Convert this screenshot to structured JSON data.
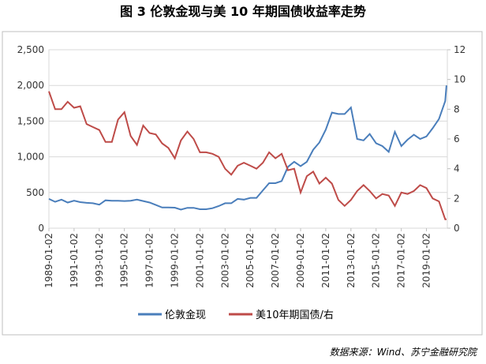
{
  "chart_data": {
    "type": "line",
    "title": "图 3  伦敦金现与美 10 年期国债收益率走势",
    "source": "数据来源：Wind、苏宁金融研究院",
    "x": [
      "1989-01-02",
      "1989-07-03",
      "1990-01-02",
      "1990-07-02",
      "1991-01-02",
      "1991-07-01",
      "1992-01-02",
      "1992-07-01",
      "1993-01-04",
      "1993-07-01",
      "1994-01-03",
      "1994-07-01",
      "1995-01-03",
      "1995-07-03",
      "1996-01-02",
      "1996-07-01",
      "1997-01-02",
      "1997-07-01",
      "1998-01-02",
      "1998-07-01",
      "1999-01-04",
      "1999-07-01",
      "2000-01-03",
      "2000-07-03",
      "2001-01-02",
      "2001-07-02",
      "2002-01-02",
      "2002-07-01",
      "2003-01-02",
      "2003-07-01",
      "2004-01-02",
      "2004-07-01",
      "2005-01-03",
      "2005-07-01",
      "2006-01-03",
      "2006-07-03",
      "2007-01-02",
      "2007-07-02",
      "2008-01-02",
      "2008-07-01",
      "2009-01-02",
      "2009-07-01",
      "2010-01-04",
      "2010-07-01",
      "2011-01-03",
      "2011-07-01",
      "2012-01-03",
      "2012-07-02",
      "2013-01-02",
      "2013-07-01",
      "2014-01-02",
      "2014-07-01",
      "2015-01-02",
      "2015-07-01",
      "2016-01-04",
      "2016-07-01",
      "2017-01-03",
      "2017-07-03",
      "2018-01-02",
      "2018-07-02",
      "2019-01-02",
      "2019-07-01",
      "2020-01-02",
      "2020-07-01",
      "2020-08-06"
    ],
    "xlim": [
      "1989-01-02",
      "2020-08-31"
    ],
    "xticks": [
      "1989-01-02",
      "1991-01-02",
      "1993-01-02",
      "1995-01-02",
      "1997-01-02",
      "1999-01-02",
      "2001-01-02",
      "2003-01-02",
      "2005-01-02",
      "2007-01-02",
      "2009-01-02",
      "2011-01-02",
      "2013-01-02",
      "2015-01-02",
      "2017-01-02",
      "2019-01-02"
    ],
    "ylim": [
      0,
      2500
    ],
    "yticks": [
      0,
      500,
      {
        "value": 1000,
        "label": "1,000"
      },
      {
        "value": 1500,
        "label": "1,500"
      },
      {
        "value": 2000,
        "label": "2,000"
      },
      {
        "value": 2500,
        "label": "2,500"
      }
    ],
    "y2lim": [
      0,
      12
    ],
    "y2ticks": [
      0,
      2,
      4,
      6,
      8,
      10,
      12
    ],
    "grid": true,
    "legend": "bottom",
    "series": [
      {
        "name": "伦敦金现",
        "color": "#4a7ebb",
        "values": [
          410,
          370,
          400,
          360,
          385,
          365,
          355,
          350,
          330,
          390,
          385,
          385,
          380,
          385,
          400,
          380,
          360,
          325,
          290,
          290,
          288,
          260,
          285,
          285,
          265,
          265,
          280,
          310,
          350,
          350,
          410,
          400,
          425,
          425,
          530,
          630,
          630,
          660,
          860,
          930,
          870,
          930,
          1100,
          1200,
          1380,
          1620,
          1600,
          1600,
          1690,
          1250,
          1230,
          1320,
          1190,
          1150,
          1070,
          1350,
          1150,
          1240,
          1310,
          1250,
          1285,
          1400,
          1530,
          1780,
          2000
        ]
      },
      {
        "name": "美10年期国债/右",
        "color": "#be4b48",
        "axis": "y2",
        "values": [
          9.2,
          8.0,
          8.0,
          8.5,
          8.1,
          8.2,
          7.0,
          6.8,
          6.6,
          5.8,
          5.8,
          7.3,
          7.8,
          6.2,
          5.6,
          6.9,
          6.4,
          6.3,
          5.7,
          5.4,
          4.7,
          5.9,
          6.5,
          6.0,
          5.1,
          5.1,
          5.0,
          4.8,
          4.0,
          3.6,
          4.2,
          4.4,
          4.2,
          4.0,
          4.4,
          5.1,
          4.7,
          5.0,
          3.9,
          4.0,
          2.4,
          3.5,
          3.8,
          3.0,
          3.4,
          3.0,
          1.9,
          1.5,
          1.9,
          2.5,
          2.9,
          2.5,
          2.0,
          2.3,
          2.2,
          1.5,
          2.4,
          2.3,
          2.5,
          2.9,
          2.7,
          2.0,
          1.8,
          0.6,
          0.6
        ]
      }
    ]
  }
}
